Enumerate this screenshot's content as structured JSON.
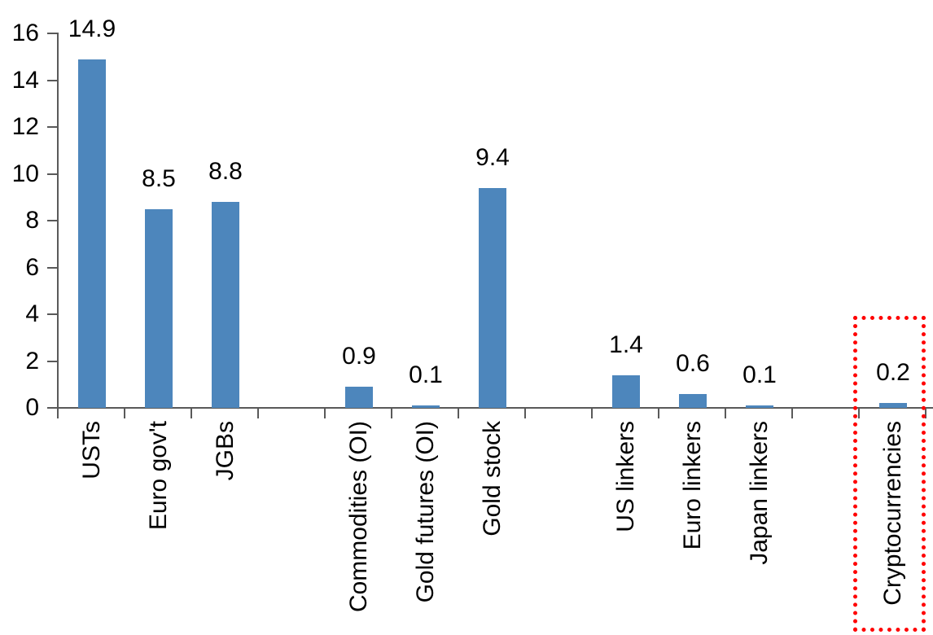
{
  "chart_data": {
    "type": "bar",
    "title": "",
    "categories": [
      "USTs",
      "Euro gov't",
      "JGBs",
      "Commodities (OI)",
      "Gold futures (OI)",
      "Gold stock",
      "US linkers",
      "Euro linkers",
      "Japan linkers",
      "Cryptocurrencies"
    ],
    "values": [
      14.9,
      8.5,
      8.8,
      0.9,
      0.1,
      9.4,
      1.4,
      0.6,
      0.1,
      0.2
    ],
    "value_labels": [
      "14.9",
      "8.5",
      "8.8",
      "0.9",
      "0.1",
      "9.4",
      "1.4",
      "0.6",
      "0.1",
      "0.2"
    ],
    "slots": [
      0,
      1,
      2,
      4,
      5,
      6,
      8,
      9,
      10,
      12
    ],
    "total_slots": 13,
    "xlabel": "",
    "ylabel": "",
    "ylim": [
      0,
      16
    ],
    "yticks": [
      0,
      2,
      4,
      6,
      8,
      10,
      12,
      14,
      16
    ],
    "ytick_labels": [
      "0",
      "2",
      "4",
      "6",
      "8",
      "10",
      "12",
      "14",
      "16"
    ],
    "grid": false,
    "legend": "none",
    "bar_color": "#4D86BC",
    "axis_color": "#595959",
    "text_color": "#000000",
    "highlight": {
      "category": "Cryptocurrencies",
      "value": 0.2,
      "style": "red-dotted-box",
      "color": "#FF0000"
    }
  }
}
